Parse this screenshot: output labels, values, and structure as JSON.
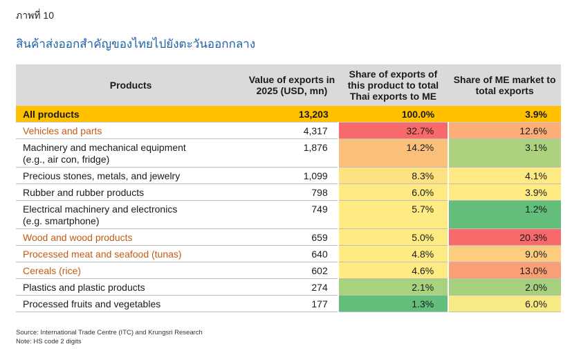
{
  "header": {
    "figure_label": "ภาพที่ 10",
    "title": "สินค้าส่งออกสำคัญของไทยไปยังตะวันออกกลาง"
  },
  "table": {
    "columns": {
      "products": "Products",
      "value": "Value of exports in 2025 (USD, mn)",
      "share": "Share of exports of this product to total Thai exports to ME",
      "me_share": "Share of ME market to total exports"
    },
    "total": {
      "name": "All products",
      "value": "13,203",
      "share": "100.0%",
      "me_share": "3.9%"
    },
    "rows": [
      {
        "name": "Vehicles and parts",
        "value": "4,317",
        "share": "32.7%",
        "me_share": "12.6%"
      },
      {
        "name": "Machinery and mechanical equipment",
        "name2": "(e.g., air con, fridge)",
        "value": "1,876",
        "share": "14.2%",
        "me_share": "3.1%"
      },
      {
        "name": "Precious stones, metals, and jewelry",
        "value": "1,099",
        "share": "8.3%",
        "me_share": "4.1%"
      },
      {
        "name": "Rubber and rubber products",
        "value": "798",
        "share": "6.0%",
        "me_share": "3.9%"
      },
      {
        "name": "Electrical machinery and electronics",
        "name2": "(e.g. smartphone)",
        "value": "749",
        "share": "5.7%",
        "me_share": "1.2%"
      },
      {
        "name": "Wood and wood products",
        "value": "659",
        "share": "5.0%",
        "me_share": "20.3%"
      },
      {
        "name": "Processed meat and seafood (tunas)",
        "value": "640",
        "share": "4.8%",
        "me_share": "9.0%"
      },
      {
        "name": "Cereals (rice)",
        "value": "602",
        "share": "4.6%",
        "me_share": "13.0%"
      },
      {
        "name": "Plastics and plastic products",
        "value": "274",
        "share": "2.1%",
        "me_share": "2.0%"
      },
      {
        "name": "Processed fruits and vegetables",
        "value": "177",
        "share": "1.3%",
        "me_share": "6.0%"
      }
    ]
  },
  "heatmap_colors": {
    "share": [
      "#f8696b",
      "#fbbf7c",
      "#fee282",
      "#fee983",
      "#ffeb84",
      "#ffeb84",
      "#ffeb84",
      "#ffeb84",
      "#a9d27f",
      "#63be7b"
    ],
    "me_share": [
      "#fcad78",
      "#acd17f",
      "#fee983",
      "#ffeb84",
      "#63be7b",
      "#f8696b",
      "#fdcc7e",
      "#fa9e75",
      "#a6d07e",
      "#f7e984"
    ],
    "total_bg": "#ffc000",
    "highlight_text": "#c55a11",
    "title_color": "#1f5fa8"
  },
  "footer": {
    "source": "Source: International Trade Centre (ITC) and Krungsri Research",
    "note": "Note: HS code 2 digits"
  }
}
